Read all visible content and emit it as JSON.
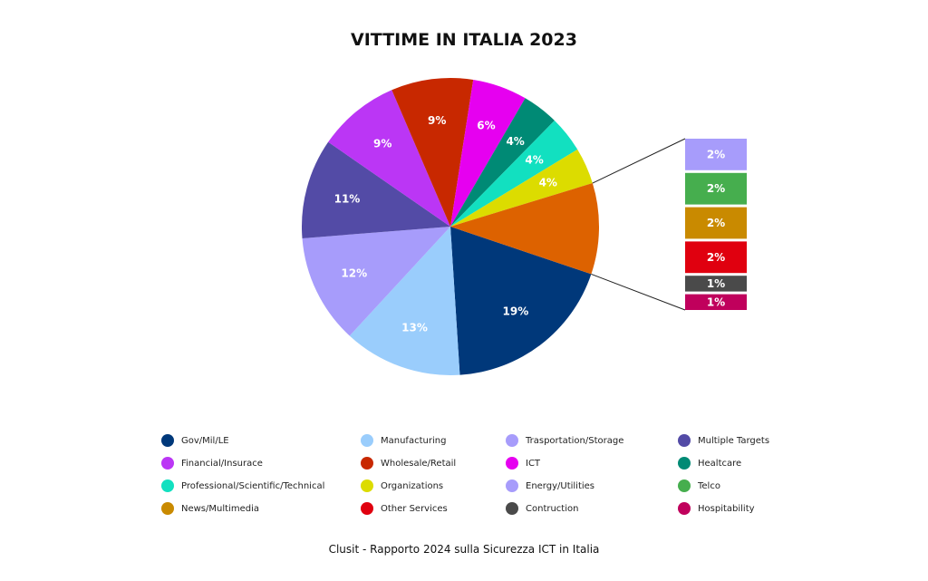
{
  "chart_data": {
    "type": "pie",
    "title": "VITTIME IN ITALIA 2023",
    "slices": [
      {
        "name": "Gov/Mil/LE",
        "value": 19,
        "label": "19%",
        "color": "#00387A"
      },
      {
        "name": "Manufacturing",
        "value": 13,
        "label": "13%",
        "color": "#9ACDFC"
      },
      {
        "name": "Trasportation/Storage",
        "value": 12,
        "label": "12%",
        "color": "#A79CFB"
      },
      {
        "name": "Multiple Targets",
        "value": 11,
        "label": "11%",
        "color": "#534BA6"
      },
      {
        "name": "Financial/Insurace",
        "value": 9,
        "label": "9%",
        "color": "#BB36F5"
      },
      {
        "name": "Wholesale/Retail",
        "value": 9,
        "label": "9%",
        "color": "#C82800"
      },
      {
        "name": "ICT",
        "value": 6,
        "label": "6%",
        "color": "#E600F0"
      },
      {
        "name": "Healtcare",
        "value": 4,
        "label": "4%",
        "color": "#008A75"
      },
      {
        "name": "Professional/Scientific/Technical",
        "value": 4,
        "label": "4%",
        "color": "#12E0C0"
      },
      {
        "name": "Organizations",
        "value": 4,
        "label": "4%",
        "color": "#DCDC00"
      },
      {
        "name": "Other",
        "value": 10,
        "label": "",
        "color": "#DD6200"
      }
    ],
    "breakdown": [
      {
        "name": "Energy/Utilities",
        "value": 2,
        "label": "2%",
        "color": "#A79CFB"
      },
      {
        "name": "Telco",
        "value": 2,
        "label": "2%",
        "color": "#46AE4E"
      },
      {
        "name": "News/Multimedia",
        "value": 2,
        "label": "2%",
        "color": "#C98A00"
      },
      {
        "name": "Other Services",
        "value": 2,
        "label": "2%",
        "color": "#E0000F"
      },
      {
        "name": "Contruction",
        "value": 1,
        "label": "1%",
        "color": "#4A4A4A"
      },
      {
        "name": "Hospitability",
        "value": 1,
        "label": "1%",
        "color": "#C0005C"
      }
    ],
    "legend": [
      {
        "label": "Gov/Mil/LE",
        "color": "#00387A"
      },
      {
        "label": "Manufacturing",
        "color": "#9ACDFC"
      },
      {
        "label": "Trasportation/Storage",
        "color": "#A79CFB"
      },
      {
        "label": "Multiple Targets",
        "color": "#534BA6"
      },
      {
        "label": "Financial/Insurace",
        "color": "#BB36F5"
      },
      {
        "label": "Wholesale/Retail",
        "color": "#C82800"
      },
      {
        "label": "ICT",
        "color": "#E600F0"
      },
      {
        "label": "Healtcare",
        "color": "#008A75"
      },
      {
        "label": "Professional/Scientific/Technical",
        "color": "#12E0C0"
      },
      {
        "label": "Organizations",
        "color": "#DCDC00"
      },
      {
        "label": "Energy/Utilities",
        "color": "#A79CFB"
      },
      {
        "label": "Telco",
        "color": "#46AE4E"
      },
      {
        "label": "News/Multimedia",
        "color": "#C98A00"
      },
      {
        "label": "Other Services",
        "color": "#E0000F"
      },
      {
        "label": "Contruction",
        "color": "#4A4A4A"
      },
      {
        "label": "Hospitability",
        "color": "#C0005C"
      }
    ],
    "legend_placement": "bottom"
  },
  "source": "Clusit - Rapporto 2024 sulla Sicurezza ICT in Italia"
}
